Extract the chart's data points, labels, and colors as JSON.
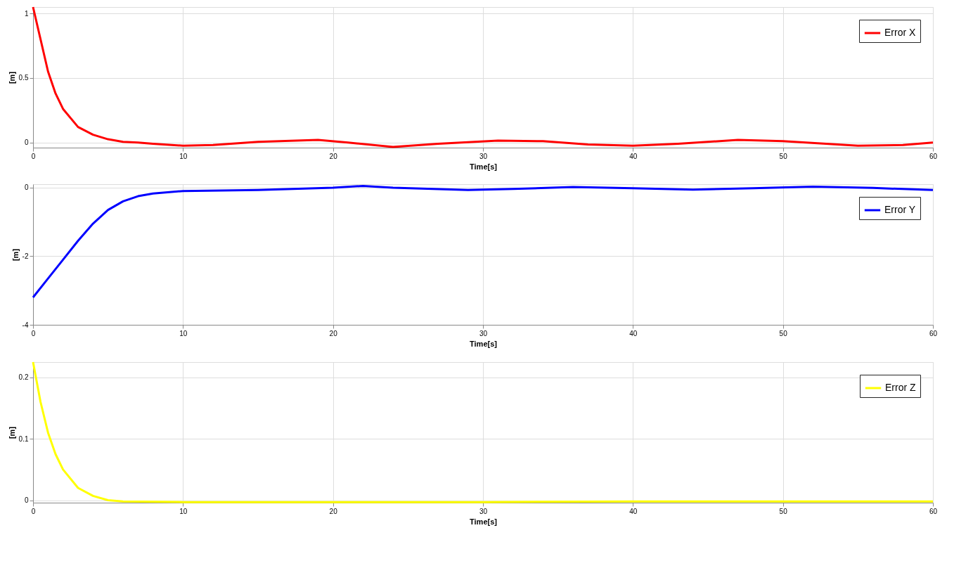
{
  "chart_data": [
    {
      "type": "line",
      "xlabel": "Time[s]",
      "ylabel": "[m]",
      "xlim": [
        0,
        60
      ],
      "xticks": [
        0,
        10,
        20,
        30,
        40,
        50,
        60
      ],
      "ylim": [
        -0.04,
        1.05
      ],
      "yticks": [
        0,
        0.5,
        1
      ],
      "grid": true,
      "legend": "top right",
      "line_style": "solid",
      "marker": "none",
      "series": [
        {
          "name": "Error X",
          "color": "#ff0000",
          "x": [
            0,
            0.5,
            1,
            1.5,
            2,
            3,
            4,
            5,
            6,
            7,
            8,
            10,
            12,
            15,
            19,
            21,
            24,
            27,
            31,
            34,
            37,
            40,
            43,
            47,
            50,
            55,
            58,
            60
          ],
          "values": [
            1.05,
            0.8,
            0.55,
            0.38,
            0.26,
            0.12,
            0.06,
            0.025,
            0.005,
            0.0,
            -0.01,
            -0.025,
            -0.02,
            0.005,
            0.02,
            0.0,
            -0.035,
            -0.01,
            0.015,
            0.01,
            -0.015,
            -0.025,
            -0.01,
            0.02,
            0.01,
            -0.025,
            -0.02,
            0.0
          ]
        }
      ]
    },
    {
      "type": "line",
      "xlabel": "Time[s]",
      "ylabel": "[m]",
      "xlim": [
        0,
        60
      ],
      "xticks": [
        0,
        10,
        20,
        30,
        40,
        50,
        60
      ],
      "ylim": [
        -4,
        0.1
      ],
      "yticks": [
        -4,
        -2,
        0
      ],
      "grid": true,
      "legend": "top right",
      "line_style": "solid",
      "marker": "none",
      "series": [
        {
          "name": "Error Y",
          "color": "#0000ff",
          "x": [
            0,
            1,
            2,
            3,
            4,
            5,
            6,
            7,
            8,
            10,
            15,
            20,
            22,
            24,
            29,
            32,
            36,
            40,
            44,
            48,
            52,
            56,
            60
          ],
          "values": [
            -3.2,
            -2.65,
            -2.1,
            -1.55,
            -1.05,
            -0.65,
            -0.4,
            -0.25,
            -0.17,
            -0.1,
            -0.07,
            0.0,
            0.05,
            0.0,
            -0.07,
            -0.04,
            0.02,
            -0.02,
            -0.06,
            -0.02,
            0.03,
            -0.01,
            -0.07
          ]
        }
      ]
    },
    {
      "type": "line",
      "xlabel": "Time[s]",
      "ylabel": "[m]",
      "xlim": [
        0,
        60
      ],
      "xticks": [
        0,
        10,
        20,
        30,
        40,
        50,
        60
      ],
      "ylim": [
        -0.004,
        0.225
      ],
      "yticks": [
        0,
        0.1,
        0.2
      ],
      "grid": true,
      "legend": "top right",
      "line_style": "solid",
      "marker": "none",
      "series": [
        {
          "name": "Error Z",
          "color": "#ffff00",
          "x": [
            0,
            0.5,
            1,
            1.5,
            2,
            3,
            4,
            5,
            6,
            10,
            20,
            30,
            40,
            50,
            60
          ],
          "values": [
            0.225,
            0.16,
            0.11,
            0.075,
            0.05,
            0.02,
            0.007,
            0.0,
            -0.002,
            -0.003,
            -0.003,
            -0.003,
            -0.002,
            -0.002,
            -0.002
          ]
        }
      ]
    }
  ]
}
